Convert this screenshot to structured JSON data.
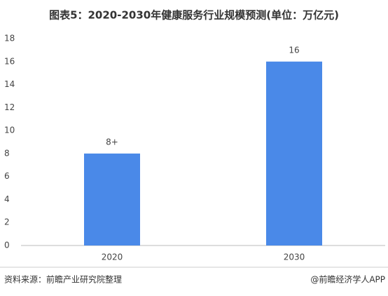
{
  "chart_data": {
    "type": "bar",
    "title": "图表5：2020-2030年健康服务行业规模预测(单位：万亿元)",
    "categories": [
      "2020",
      "2030"
    ],
    "values": [
      8,
      16
    ],
    "value_labels": [
      "8+",
      "16"
    ],
    "color": "#4a89e8",
    "ylim": [
      0,
      18
    ],
    "yticks": [
      0,
      2,
      4,
      6,
      8,
      10,
      12,
      14,
      16,
      18
    ],
    "grid": false,
    "source": "资料来源：前瞻产业研究院整理",
    "credit": "@前瞻经济学人APP"
  }
}
